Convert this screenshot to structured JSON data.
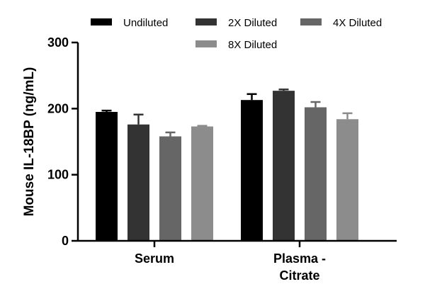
{
  "chart_data": {
    "type": "bar",
    "title": "",
    "xlabel": "",
    "ylabel": "Mouse IL-18BP (ng/mL)",
    "ylim": [
      0,
      300
    ],
    "yticks": [
      0,
      100,
      200,
      300
    ],
    "categories": [
      "Serum",
      "Plasma - Citrate"
    ],
    "category_lines": [
      [
        "Serum"
      ],
      [
        "Plasma -",
        "Citrate"
      ]
    ],
    "series": [
      {
        "name": "Undiluted",
        "color": "#000000",
        "values": [
          195,
          213
        ],
        "errors": [
          2,
          9
        ]
      },
      {
        "name": "2X Diluted",
        "color": "#333333",
        "values": [
          176,
          227
        ],
        "errors": [
          15,
          2
        ]
      },
      {
        "name": "4X Diluted",
        "color": "#666666",
        "values": [
          158,
          202
        ],
        "errors": [
          6,
          8
        ]
      },
      {
        "name": "8X Diluted",
        "color": "#8c8c8c",
        "values": [
          173,
          184
        ],
        "errors": [
          1,
          9
        ]
      }
    ],
    "legend_position": "top"
  }
}
